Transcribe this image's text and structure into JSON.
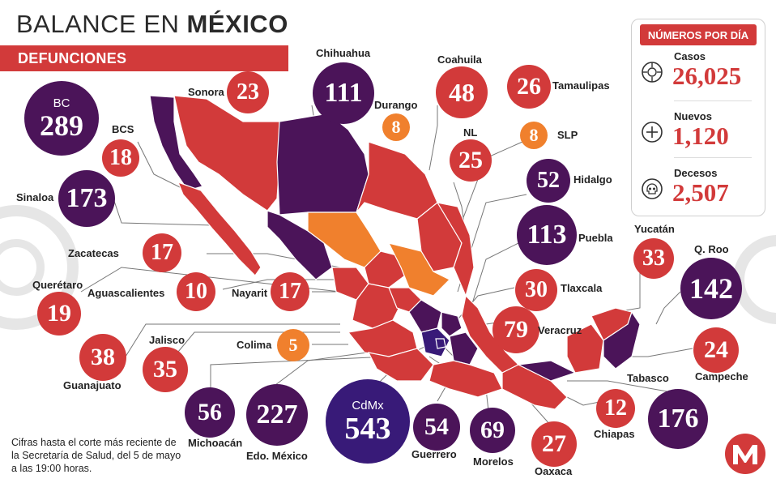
{
  "header": {
    "title_prefix": "BALANCE EN ",
    "title_bold": "MÉXICO",
    "subtitle": "DEFUNCIONES"
  },
  "panel": {
    "title": "NÚMEROS POR DÍA",
    "stats": [
      {
        "label": "Casos",
        "value": "26,025",
        "icon": "virus-icon"
      },
      {
        "label": "Nuevos",
        "value": "1,120",
        "icon": "plus-circle-icon"
      },
      {
        "label": "Decesos",
        "value": "2,507",
        "icon": "skull-icon"
      }
    ]
  },
  "states": {
    "bc": {
      "name": "BC",
      "value": "289"
    },
    "bcs": {
      "name": "BCS",
      "value": "18"
    },
    "sonora": {
      "name": "Sonora",
      "value": "23"
    },
    "chihuahua": {
      "name": "Chihuahua",
      "value": "111"
    },
    "coahuila": {
      "name": "Coahuila",
      "value": "48"
    },
    "tamaulipas": {
      "name": "Tamaulipas",
      "value": "26"
    },
    "durango": {
      "name": "Durango",
      "value": "8"
    },
    "nl": {
      "name": "NL",
      "value": "25"
    },
    "slp": {
      "name": "SLP",
      "value": "8"
    },
    "sinaloa": {
      "name": "Sinaloa",
      "value": "173"
    },
    "hidalgo": {
      "name": "Hidalgo",
      "value": "52"
    },
    "puebla": {
      "name": "Puebla",
      "value": "113"
    },
    "zacatecas": {
      "name": "Zacatecas",
      "value": "17"
    },
    "aguascalientes": {
      "name": "Aguascalientes",
      "value": "10"
    },
    "nayarit": {
      "name": "Nayarit",
      "value": "17"
    },
    "queretaro": {
      "name": "Querétaro",
      "value": "19"
    },
    "tlaxcala": {
      "name": "Tlaxcala",
      "value": "30"
    },
    "yucatan": {
      "name": "Yucatán",
      "value": "33"
    },
    "qroo": {
      "name": "Q. Roo",
      "value": "142"
    },
    "veracruz": {
      "name": "Veracruz",
      "value": "79"
    },
    "guanajuato": {
      "name": "Guanajuato",
      "value": "38"
    },
    "jalisco": {
      "name": "Jalisco",
      "value": "35"
    },
    "colima": {
      "name": "Colima",
      "value": "5"
    },
    "campeche": {
      "name": "Campeche",
      "value": "24"
    },
    "tabasco": {
      "name": "Tabasco",
      "value": "176"
    },
    "michoacan": {
      "name": "Michoacán",
      "value": "56"
    },
    "edomex": {
      "name": "Edo. México",
      "value": "227"
    },
    "cdmx": {
      "name": "CdMx",
      "value": "543"
    },
    "guerrero": {
      "name": "Guerrero",
      "value": "54"
    },
    "morelos": {
      "name": "Morelos",
      "value": "69"
    },
    "oaxaca": {
      "name": "Oaxaca",
      "value": "27"
    },
    "chiapas": {
      "name": "Chiapas",
      "value": "12"
    }
  },
  "note": "Cifras hasta el corte más reciente de la Secretaría de Salud, del 5 de mayo a las 19:00 horas.",
  "logo_letter": "M",
  "colors": {
    "red": "#d23a3a",
    "purple": "#4b1459",
    "orange": "#f0802d",
    "deep_purple": "#381a78"
  }
}
